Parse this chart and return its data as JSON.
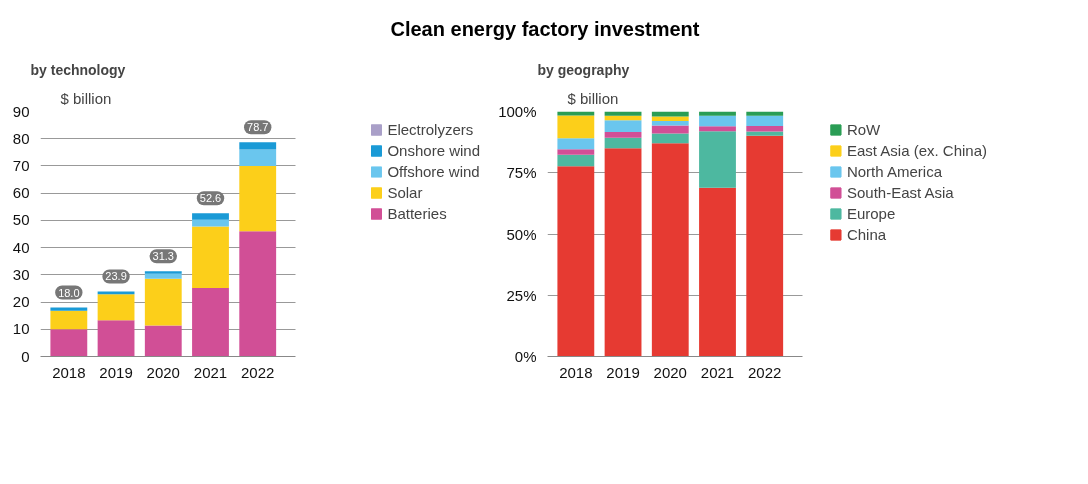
{
  "chart_data": [
    {
      "type": "bar",
      "annotations": [
        "Clean energy factory investment"
      ],
      "subtitle": "by technology",
      "ylabel": "$ billion",
      "stacked": true,
      "categories": [
        "2018",
        "2019",
        "2020",
        "2021",
        "2022"
      ],
      "ylim": [
        0,
        90
      ],
      "yticks": [
        0,
        10,
        20,
        30,
        40,
        50,
        60,
        70,
        80,
        90
      ],
      "grid": "y",
      "legend": "right",
      "totals": [
        "18.0",
        "23.9",
        "31.3",
        "52.6",
        "78.7"
      ],
      "series": [
        {
          "name": "Batteries",
          "color": "#d14f96",
          "values": [
            10.0,
            13.3,
            11.4,
            25.2,
            46.0
          ]
        },
        {
          "name": "Solar",
          "color": "#fccf1a",
          "values": [
            6.8,
            9.6,
            17.2,
            22.6,
            24.0
          ]
        },
        {
          "name": "Offshore wind",
          "color": "#6ac6ee",
          "values": [
            null,
            null,
            1.8,
            2.4,
            6.0
          ]
        },
        {
          "name": "Onshore wind",
          "color": "#1a9ad6",
          "values": [
            1.2,
            1.0,
            0.9,
            2.4,
            2.7
          ]
        },
        {
          "name": "Electrolyzers",
          "color": "#a99fc8",
          "values": [
            0,
            0,
            0,
            0,
            0
          ]
        }
      ]
    },
    {
      "type": "bar",
      "subtitle": "by geography",
      "ylabel": "$ billion",
      "stacked": true,
      "categories": [
        "2018",
        "2019",
        "2020",
        "2021",
        "2022"
      ],
      "ylim": [
        0,
        100
      ],
      "yticks": [
        {
          "value": 0,
          "label": "0%"
        },
        {
          "value": 25,
          "label": "25%"
        },
        {
          "value": 50,
          "label": "50%"
        },
        {
          "value": 75,
          "label": "75%"
        },
        {
          "value": 100,
          "label": "100%"
        }
      ],
      "grid": "y",
      "legend": "right",
      "series": [
        {
          "name": "China",
          "color": "#e63a32",
          "values": [
            77.7,
            85.0,
            87.0,
            68.9,
            90.1
          ]
        },
        {
          "name": "Europe",
          "color": "#4db8a0",
          "values": [
            4.6,
            4.3,
            4.0,
            23.0,
            1.7
          ]
        },
        {
          "name": "South-East Asia",
          "color": "#d14f96",
          "values": [
            2.3,
            2.3,
            3.3,
            2.1,
            2.3
          ]
        },
        {
          "name": "North America",
          "color": "#6ac6ee",
          "values": [
            4.5,
            4.8,
            1.8,
            4.3,
            4.2
          ]
        },
        {
          "name": "East Asia (ex. China)",
          "color": "#fccf1a",
          "values": [
            9.3,
            1.9,
            1.9,
            0,
            0
          ]
        },
        {
          "name": "RoW",
          "color": "#2a9d55",
          "values": [
            1.6,
            1.7,
            2.0,
            1.7,
            1.7
          ]
        }
      ]
    }
  ]
}
